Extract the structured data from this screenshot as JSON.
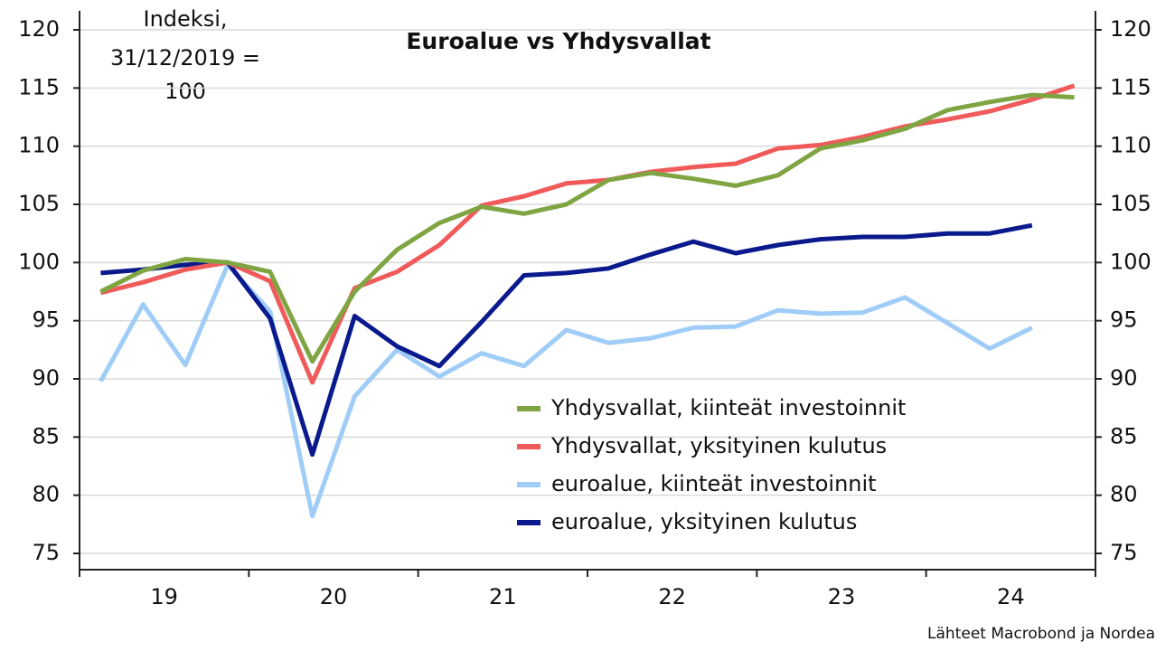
{
  "chart_data": {
    "type": "line",
    "title": "Euroalue vs Yhdysvallat",
    "annotation": [
      "Indeksi,",
      "31/12/2019 =",
      "100"
    ],
    "source": "Lähteet Macrobond ja Nordea",
    "categories": [
      null,
      null,
      null,
      null,
      null,
      null,
      null,
      null,
      null,
      null,
      null,
      null,
      null,
      null,
      null,
      null,
      null,
      null,
      null,
      null,
      null,
      null,
      null,
      null
    ],
    "year_labels": [
      "19",
      "20",
      "21",
      "22",
      "23",
      "24"
    ],
    "ylim": [
      75,
      120
    ],
    "yticks": [
      75,
      80,
      85,
      90,
      95,
      100,
      105,
      110,
      115,
      120
    ],
    "y2lim": [
      75,
      120
    ],
    "y2ticks": [
      75,
      80,
      85,
      90,
      95,
      100,
      105,
      110,
      115,
      120
    ],
    "grid": true,
    "legend": "lower right",
    "series": [
      {
        "name": "Yhdysvallat, kiinteät investoinnit",
        "color": "#7fa543",
        "values": [
          97.5,
          99.3,
          100.3,
          100,
          99.2,
          91.5,
          97.5,
          101.1,
          103.4,
          104.8,
          104.2,
          105,
          107.1,
          107.7,
          107.2,
          106.6,
          107.5,
          109.8,
          110.5,
          111.5,
          113.1,
          113.8,
          114.4,
          114.2
        ]
      },
      {
        "name": "Yhdysvallat, yksityinen kulutus",
        "color": "#f05a5a",
        "values": [
          97.4,
          98.3,
          99.4,
          100,
          98.4,
          89.7,
          97.8,
          99.2,
          101.5,
          104.9,
          105.7,
          106.8,
          107.1,
          107.8,
          108.2,
          108.5,
          109.8,
          110.1,
          110.8,
          111.7,
          112.3,
          113.0,
          114.0,
          115.2
        ]
      },
      {
        "name": "euroalue, kiinteät investoinnit",
        "color": "#9fcdf7",
        "values": [
          89.8,
          96.4,
          91.2,
          99.8,
          95.8,
          78.2,
          88.5,
          92.5,
          90.2,
          92.2,
          91.1,
          94.2,
          93.1,
          93.5,
          94.4,
          94.5,
          95.9,
          95.6,
          95.7,
          97.0,
          94.8,
          92.6,
          94.4,
          null
        ]
      },
      {
        "name": "euroalue, yksityinen kulutus",
        "color": "#0a1a8c",
        "values": [
          99.1,
          99.4,
          99.8,
          100,
          95.2,
          83.5,
          95.4,
          92.8,
          91.1,
          94.9,
          98.9,
          99.1,
          99.5,
          100.7,
          101.8,
          100.8,
          101.5,
          102.0,
          102.2,
          102.2,
          102.5,
          102.5,
          103.2,
          null
        ]
      }
    ]
  }
}
